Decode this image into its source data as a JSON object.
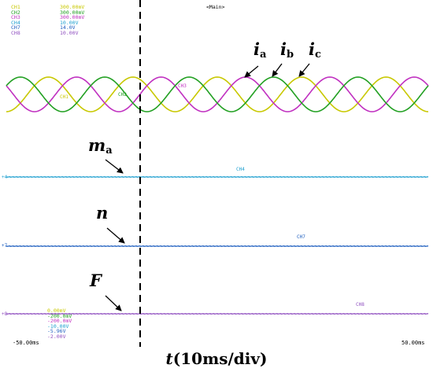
{
  "header": {
    "main_tag": "<Main>"
  },
  "channels": [
    {
      "name": "CH1",
      "scale": "300.00mV",
      "color": "#c8c800"
    },
    {
      "name": "CH2",
      "scale": "300.00mV",
      "color": "#22a022"
    },
    {
      "name": "CH3",
      "scale": "300.00mV",
      "color": "#c030c0"
    },
    {
      "name": "CH4",
      "scale": "10.00V",
      "color": "#20a0d0"
    },
    {
      "name": "CH7",
      "scale": "14.0V",
      "color": "#2060c0"
    },
    {
      "name": "CH8",
      "scale": "10.00V",
      "color": "#9050c0"
    }
  ],
  "offsets": [
    {
      "name": "CH1",
      "value": "0.00mV",
      "color": "#c8c800"
    },
    {
      "name": "CH2",
      "value": "-200.0mV",
      "color": "#22a022"
    },
    {
      "name": "CH3",
      "value": "-200.0mV",
      "color": "#c030c0"
    },
    {
      "name": "CH4",
      "value": "-10.00V",
      "color": "#20a0d0"
    },
    {
      "name": "CH7",
      "value": "-5.96V",
      "color": "#2060c0"
    },
    {
      "name": "CH8",
      "value": "-2.00V",
      "color": "#9050c0"
    }
  ],
  "trace_tags": {
    "ch1": "CH1",
    "ch2": "CH2",
    "ch3": "CH3",
    "ch4": "CH4",
    "ch7": "CH7",
    "ch8": "CH8"
  },
  "signals": {
    "ia": {
      "sym": "i",
      "sub": "a"
    },
    "ib": {
      "sym": "i",
      "sub": "b"
    },
    "ic": {
      "sym": "i",
      "sub": "c"
    },
    "ma": {
      "sym": "m",
      "sub": "a"
    },
    "n": {
      "sym": "n"
    },
    "F": {
      "sym": "F"
    }
  },
  "time_axis": {
    "left": "-50.00ms",
    "right": "50.00ms"
  },
  "xlabel": {
    "sym": "t",
    "unit": "(10ms/div)"
  },
  "chart_data": {
    "type": "line",
    "x_range": [
      -50,
      50
    ],
    "x_unit": "ms",
    "grid": false,
    "trigger_marker_x": -25,
    "series": [
      {
        "name": "ia",
        "color": "#c8c800",
        "kind": "sine",
        "amplitude": 1.0,
        "period": 20,
        "phase_deg": 90
      },
      {
        "name": "ib",
        "color": "#c030c0",
        "kind": "sine",
        "amplitude": 1.0,
        "period": 20,
        "phase_deg": -30
      },
      {
        "name": "ic",
        "color": "#22a022",
        "kind": "sine",
        "amplitude": 1.0,
        "period": 20,
        "phase_deg": 210
      },
      {
        "name": "ma",
        "color": "#20a0d0",
        "kind": "flat",
        "level": 0
      },
      {
        "name": "n",
        "color": "#2060c0",
        "kind": "flat",
        "level": 0
      },
      {
        "name": "F",
        "color": "#9050c0",
        "kind": "flat",
        "level": 0
      }
    ]
  }
}
